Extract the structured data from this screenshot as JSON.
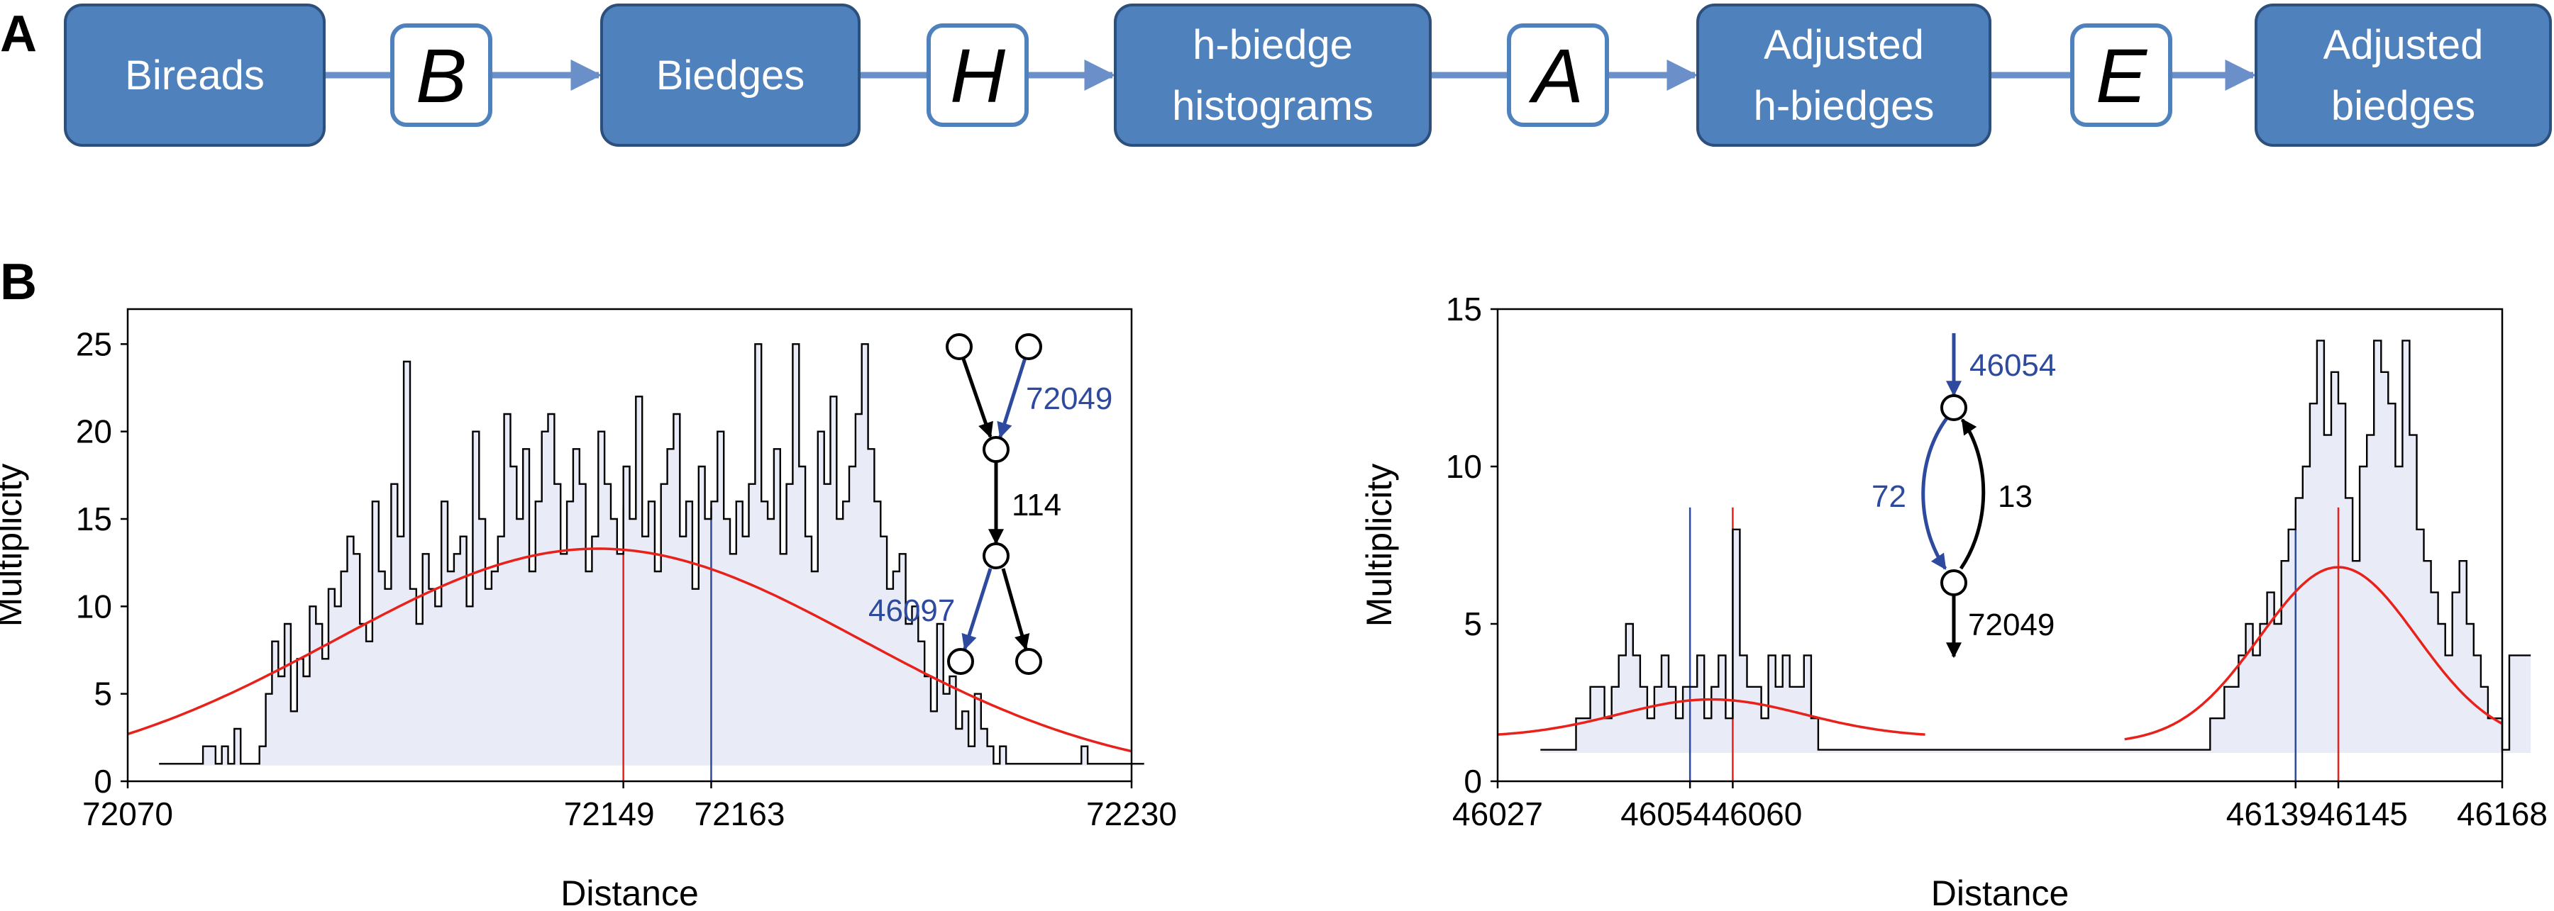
{
  "panels": {
    "a_label": "A",
    "b_label": "B"
  },
  "pipeline": {
    "nodes": [
      "Bireads",
      "Biedges",
      "h-biedge\nhistograms",
      "Adjusted\nh-biedges",
      "Adjusted\nbiedges"
    ],
    "operators": [
      "B",
      "H",
      "A",
      "E"
    ],
    "colors": {
      "box_fill": "#4f81bd",
      "box_stroke": "#2c4f7c",
      "op_stroke": "#4f81bd",
      "arrow": "#6a8fc9"
    }
  },
  "colors": {
    "fit": "#e8221b",
    "blue": "#2e4a9e",
    "hist": "#000000",
    "fill": "#e9ebf7"
  },
  "chart_data": [
    {
      "type": "histogram",
      "xlabel": "Distance",
      "ylabel": "Multiplicity",
      "xlim": [
        72070,
        72230
      ],
      "ylim": [
        0,
        27
      ],
      "xticks": [
        72070,
        72149,
        72163,
        72230
      ],
      "yticks": [
        0,
        5,
        10,
        15,
        20,
        25
      ],
      "bins": {
        "start": 72075,
        "width": 1,
        "values": [
          1,
          1,
          1,
          1,
          1,
          1,
          1,
          2,
          2,
          1,
          2,
          1,
          3,
          1,
          1,
          1,
          2,
          5,
          8,
          6,
          9,
          4,
          7,
          6,
          10,
          9,
          7,
          11,
          10,
          12,
          14,
          13,
          9,
          8,
          16,
          12,
          11,
          17,
          14,
          24,
          11,
          9,
          13,
          11,
          10,
          16,
          12,
          13,
          14,
          10,
          20,
          15,
          11,
          12,
          14,
          21,
          18,
          15,
          19,
          12,
          16,
          20,
          21,
          17,
          13,
          16,
          19,
          17,
          12,
          14,
          20,
          17,
          15,
          13,
          18,
          15,
          22,
          14,
          16,
          12,
          17,
          19,
          21,
          14,
          16,
          11,
          18,
          15,
          16,
          20,
          15,
          13,
          16,
          14,
          17,
          25,
          16,
          15,
          19,
          13,
          17,
          25,
          18,
          14,
          12,
          20,
          17,
          22,
          15,
          16,
          18,
          21,
          25,
          19,
          16,
          14,
          11,
          12,
          13,
          9,
          10,
          8,
          6,
          4,
          9,
          5,
          6,
          3,
          4,
          2,
          5,
          3,
          2,
          1,
          2,
          1,
          1,
          1,
          1,
          1,
          1,
          1,
          1,
          1,
          1,
          1,
          1,
          2,
          1,
          1,
          1,
          1,
          1,
          1,
          1,
          1,
          1
        ]
      },
      "fit": {
        "center": 72145,
        "amplitude": 13.3,
        "sigma": 42,
        "baseline": 0,
        "label": ""
      },
      "markers": [
        {
          "x": 72149,
          "color": "#e8221b"
        },
        {
          "x": 72163,
          "color": "#2e4a9e"
        }
      ],
      "inset": {
        "labels": {
          "blue_top": "72049",
          "middle": "114",
          "blue_bottom": "46097"
        }
      }
    },
    {
      "type": "histogram",
      "xlabel": "Distance",
      "ylabel": "Multiplicity",
      "xlim": [
        46027,
        46168
      ],
      "ylim": [
        0,
        15
      ],
      "xticks": [
        46027,
        46054,
        46060,
        46139,
        46145,
        46168
      ],
      "yticks": [
        0,
        5,
        10,
        15
      ],
      "bins": {
        "start": 46033,
        "width": 1,
        "values": [
          1,
          1,
          1,
          1,
          1,
          2,
          2,
          3,
          3,
          2,
          3,
          4,
          5,
          4,
          3,
          2,
          3,
          4,
          3,
          2,
          3,
          3,
          4,
          2,
          3,
          4,
          2,
          8,
          4,
          3,
          3,
          2,
          4,
          3,
          4,
          3,
          3,
          4,
          2,
          1,
          1,
          1,
          1,
          1,
          1,
          1,
          1,
          1,
          1,
          1,
          1,
          1,
          1,
          1,
          1,
          1,
          1,
          1,
          1,
          1,
          1,
          1,
          1,
          1,
          1,
          1,
          1,
          1,
          1,
          1,
          1,
          1,
          1,
          1,
          1,
          1,
          1,
          1,
          1,
          1,
          1,
          1,
          1,
          1,
          1,
          1,
          1,
          1,
          1,
          1,
          1,
          1,
          1,
          1,
          2,
          2,
          3,
          3,
          4,
          5,
          4,
          5,
          6,
          5,
          7,
          8,
          9,
          10,
          12,
          14,
          11,
          13,
          12,
          9,
          7,
          10,
          11,
          14,
          13,
          12,
          10,
          14,
          11,
          8,
          7,
          6,
          5,
          4,
          6,
          7,
          5,
          4,
          3,
          2,
          2,
          1,
          4,
          4,
          4
        ]
      },
      "fits": [
        {
          "center": 46057,
          "amplitude": 1.2,
          "sigma": 13,
          "baseline": 1.4,
          "from": 46027,
          "to": 46087
        },
        {
          "center": 46145,
          "amplitude": 5.6,
          "sigma": 11,
          "baseline": 1.2,
          "from": 46115,
          "to": 46168
        }
      ],
      "markers": [
        {
          "x": 46054,
          "color": "#2e4a9e"
        },
        {
          "x": 46060,
          "color": "#e8221b"
        },
        {
          "x": 46139,
          "color": "#2e4a9e"
        },
        {
          "x": 46145,
          "color": "#e8221b"
        }
      ],
      "inset": {
        "labels": {
          "blue_top": "46054",
          "blue_left": "72",
          "right": "13",
          "bottom": "72049"
        }
      }
    }
  ]
}
